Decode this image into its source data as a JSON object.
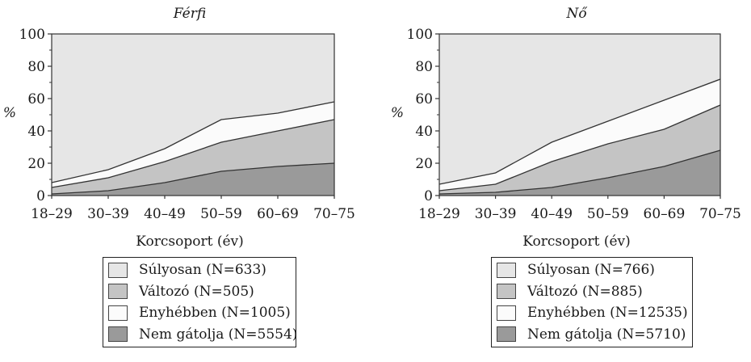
{
  "chart_data": [
    {
      "type": "area",
      "title": "Férfi",
      "xlabel": "Korcsoport (év)",
      "ylabel": "%",
      "categories": [
        "18–29",
        "30–39",
        "40–49",
        "50–59",
        "60–69",
        "70–75"
      ],
      "ylim": [
        0,
        100
      ],
      "yticks": [
        "0",
        "20",
        "40",
        "60",
        "80",
        "100"
      ],
      "stacked": true,
      "series": [
        {
          "name": "Nem gátolja (N=5554)",
          "values": [
            1,
            3,
            8,
            15,
            18,
            20
          ],
          "color": "#9a9a9a"
        },
        {
          "name": "Enyhébben (N=1005)",
          "values": [
            4,
            8,
            13,
            18,
            22,
            27
          ],
          "color": "#c4c4c4"
        },
        {
          "name": "Változó (N=505)",
          "values": [
            3,
            5,
            8,
            14,
            11,
            11
          ],
          "color": "#fbfbfb"
        },
        {
          "name": "Súlyosan (N=633)",
          "values": [
            92,
            84,
            71,
            53,
            49,
            42
          ],
          "color": "#e6e6e6"
        }
      ],
      "legend": {
        "placement": "below",
        "items": [
          {
            "label": "Súlyosan (N=633)",
            "color": "#e6e6e6"
          },
          {
            "label": "Változó (N=505)",
            "color": "#c4c4c4"
          },
          {
            "label": "Enyhébben (N=1005)",
            "color": "#fbfbfb"
          },
          {
            "label": "Nem gátolja (N=5554)",
            "color": "#9a9a9a"
          }
        ]
      }
    },
    {
      "type": "area",
      "title": "Nő",
      "xlabel": "Korcsoport (év)",
      "ylabel": "%",
      "categories": [
        "18–29",
        "30–39",
        "40–49",
        "50–59",
        "60–69",
        "70–75"
      ],
      "ylim": [
        0,
        100
      ],
      "yticks": [
        "0",
        "20",
        "40",
        "60",
        "80",
        "100"
      ],
      "stacked": true,
      "series": [
        {
          "name": "Nem gátolja (N=5710)",
          "values": [
            1,
            2,
            5,
            11,
            18,
            28
          ],
          "color": "#9a9a9a"
        },
        {
          "name": "Enyhébben (N=12535)",
          "values": [
            2,
            5,
            16,
            21,
            23,
            28
          ],
          "color": "#c4c4c4"
        },
        {
          "name": "Változó (N=885)",
          "values": [
            4,
            7,
            12,
            14,
            18,
            16
          ],
          "color": "#fbfbfb"
        },
        {
          "name": "Súlyosan (N=766)",
          "values": [
            93,
            86,
            67,
            54,
            41,
            28
          ],
          "color": "#e6e6e6"
        }
      ],
      "legend": {
        "placement": "below",
        "items": [
          {
            "label": "Súlyosan (N=766)",
            "color": "#e6e6e6"
          },
          {
            "label": "Változó (N=885)",
            "color": "#c4c4c4"
          },
          {
            "label": "Enyhébben (N=12535)",
            "color": "#fbfbfb"
          },
          {
            "label": "Nem gátolja (N=5710)",
            "color": "#9a9a9a"
          }
        ]
      }
    }
  ]
}
